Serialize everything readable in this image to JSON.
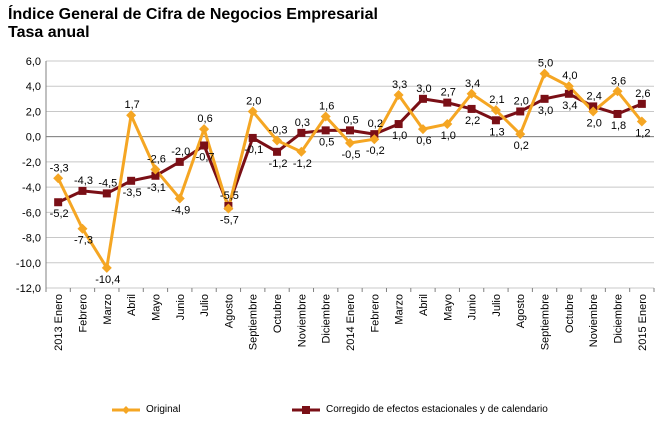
{
  "header": {
    "title": "Índice General de Cifra de Negocios Empresarial",
    "subtitle": "Tasa anual"
  },
  "legend": {
    "original": "Original",
    "corrected": "Corregido de efectos estacionales y de calendario"
  },
  "colors": {
    "original": "#F5A623",
    "corrected": "#7A0F16",
    "grid": "#c8c8c8",
    "axis": "#808080"
  },
  "chart_data": {
    "type": "line",
    "title": "Índice General de Cifra de Negocios Empresarial",
    "subtitle": "Tasa anual",
    "ylim": [
      -12,
      6
    ],
    "y_ticks": [
      "6,0",
      "4,0",
      "2,0",
      "0,0",
      "-2,0",
      "-4,0",
      "-6,0",
      "-8,0",
      "-10,0",
      "-12,0"
    ],
    "grid": true,
    "legend_position": "bottom",
    "categories": [
      "2013 Enero",
      "Febrero",
      "Marzo",
      "Abril",
      "Mayo",
      "Junio",
      "Julio",
      "Agosto",
      "Septiembre",
      "Octubre",
      "Noviembre",
      "Diciembre",
      "2014 Enero",
      "Febrero",
      "Marzo",
      "Abril",
      "Mayo",
      "Junio",
      "Julio",
      "Agosto",
      "Septiembre",
      "Octubre",
      "Noviembre",
      "Diciembre",
      "2015 Enero"
    ],
    "series": [
      {
        "name": "Original",
        "marker": "diamond",
        "values": [
          -3.3,
          -7.3,
          -10.4,
          1.7,
          -2.6,
          -4.9,
          0.6,
          -5.7,
          2.0,
          -0.3,
          -1.2,
          1.6,
          -0.5,
          -0.2,
          3.3,
          0.6,
          1.0,
          3.4,
          2.1,
          0.2,
          5.0,
          4.0,
          2.0,
          3.6,
          1.2
        ],
        "labels": [
          "-3,3",
          "-7,3",
          "-10,4",
          "1,7",
          "-2,6",
          "-4,9",
          "0,6",
          "-5,7",
          "2,0",
          "-0,3",
          "-1,2",
          "1,6",
          "-0,5",
          "-0,2",
          "3,3",
          "0,6",
          "1,0",
          "3,4",
          "2,1",
          "0,2",
          "5,0",
          "4,0",
          "2,0",
          "3,6",
          "1,2"
        ]
      },
      {
        "name": "Corregido de efectos estacionales y de calendario",
        "marker": "square",
        "values": [
          -5.2,
          -4.3,
          -4.5,
          -3.5,
          -3.1,
          -2.0,
          -0.7,
          -5.5,
          -0.1,
          -1.2,
          0.3,
          0.5,
          0.5,
          0.2,
          1.0,
          3.0,
          2.7,
          2.2,
          1.3,
          2.0,
          3.0,
          3.4,
          2.4,
          1.8,
          2.6
        ],
        "labels": [
          "-5,2",
          "-4,3",
          "-4,5",
          "-3,5",
          "-3,1",
          "-2,0",
          "-0,7",
          "-5,5",
          "-0,1",
          "-1,2",
          "0,3",
          "0,5",
          "0,5",
          "0,2",
          "1,0",
          "3,0",
          "2,7",
          "2,2",
          "1,3",
          "2,0",
          "3,0",
          "3,4",
          "2,4",
          "1,8",
          "2,6"
        ]
      }
    ]
  }
}
